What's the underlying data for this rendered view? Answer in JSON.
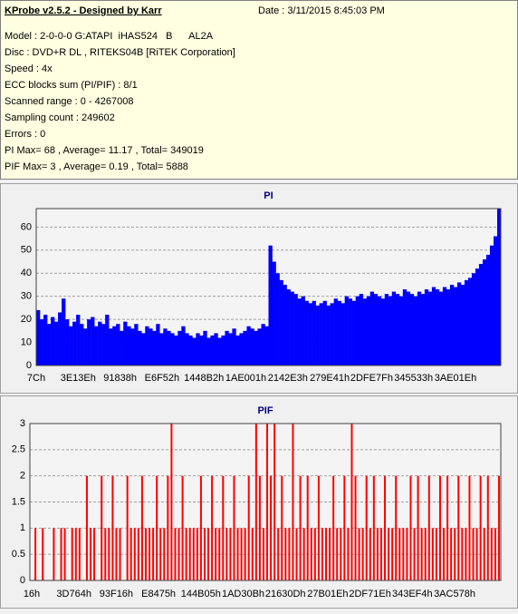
{
  "info": {
    "title": "KProbe v2.5.2 - Designed by Karr",
    "date": "Date : 3/11/2015 8:45:03 PM",
    "lines": [
      "Model : 2-0-0-0 G:ATAPI  iHAS524   B      AL2A",
      "Disc : DVD+R DL , RITEKS04B [RiTEK Corporation]",
      "Speed : 4x",
      "ECC blocks sum (PI/PIF) : 8/1",
      "Scanned range : 0 - 4267008",
      "Sampling count : 249602",
      "Errors : 0",
      "PI Max= 68 , Average= 11.17 , Total= 349019",
      "PIF Max= 3 , Average= 0.19 , Total= 5888"
    ]
  },
  "chart_data": [
    {
      "type": "bar",
      "title": "PI",
      "color": "#0000ff",
      "ylim": [
        0,
        68
      ],
      "yticks": [
        0,
        10,
        20,
        30,
        40,
        50,
        60
      ],
      "grid": true,
      "xtick_labels": [
        "7Ch",
        "3E13Eh",
        "91838h",
        "E6F52h",
        "1448B2h",
        "1AE001h",
        "2142E3h",
        "279E41h",
        "2DFE7Fh",
        "345533h",
        "3AE01Eh"
      ],
      "values": [
        24,
        20,
        22,
        18,
        21,
        19,
        23,
        29,
        20,
        17,
        19,
        22,
        18,
        16,
        20,
        21,
        17,
        19,
        18,
        22,
        16,
        17,
        18,
        15,
        19,
        17,
        16,
        18,
        15,
        14,
        17,
        16,
        15,
        18,
        14,
        16,
        15,
        14,
        13,
        15,
        17,
        14,
        13,
        12,
        14,
        13,
        15,
        12,
        13,
        14,
        12,
        13,
        15,
        14,
        16,
        13,
        14,
        15,
        17,
        16,
        15,
        16,
        18,
        17,
        52,
        45,
        40,
        37,
        35,
        33,
        32,
        31,
        29,
        30,
        28,
        27,
        28,
        26,
        27,
        28,
        26,
        27,
        29,
        28,
        27,
        30,
        29,
        28,
        30,
        31,
        29,
        30,
        32,
        31,
        30,
        29,
        31,
        30,
        32,
        31,
        30,
        33,
        32,
        31,
        30,
        32,
        31,
        33,
        32,
        34,
        33,
        32,
        34,
        33,
        35,
        34,
        36,
        35,
        37,
        38,
        40,
        42,
        44,
        46,
        48,
        52,
        56,
        68
      ]
    },
    {
      "type": "bar",
      "title": "PIF",
      "color": "#ff0000",
      "ylim": [
        0,
        3
      ],
      "yticks": [
        0,
        0.5,
        1,
        1.5,
        2,
        2.5,
        3
      ],
      "grid": true,
      "xtick_labels": [
        "16h",
        "3D764h",
        "93F16h",
        "E8475h",
        "144B05h",
        "1AD30Bh",
        "21630Dh",
        "27B01Eh",
        "2DF71Eh",
        "343EF4h",
        "3AC578h"
      ],
      "values": [
        0,
        1,
        0,
        1,
        0,
        0,
        1,
        0,
        1,
        1,
        0,
        1,
        1,
        1,
        0,
        2,
        1,
        1,
        0,
        2,
        1,
        1,
        2,
        1,
        1,
        0,
        2,
        1,
        1,
        1,
        2,
        1,
        1,
        1,
        2,
        1,
        1,
        2,
        3,
        1,
        1,
        2,
        1,
        1,
        1,
        1,
        2,
        1,
        1,
        2,
        1,
        1,
        2,
        1,
        1,
        2,
        1,
        1,
        1,
        2,
        1,
        3,
        2,
        1,
        3,
        2,
        3,
        1,
        2,
        1,
        1,
        3,
        1,
        2,
        1,
        2,
        1,
        1,
        2,
        1,
        1,
        1,
        2,
        1,
        1,
        2,
        1,
        3,
        2,
        1,
        1,
        2,
        1,
        2,
        1,
        1,
        2,
        1,
        1,
        2,
        1,
        1,
        1,
        2,
        1,
        2,
        1,
        1,
        2,
        1,
        1,
        2,
        1,
        2,
        1,
        1,
        2,
        1,
        1,
        2,
        1,
        1,
        2,
        1,
        2,
        1,
        1,
        2
      ]
    }
  ]
}
